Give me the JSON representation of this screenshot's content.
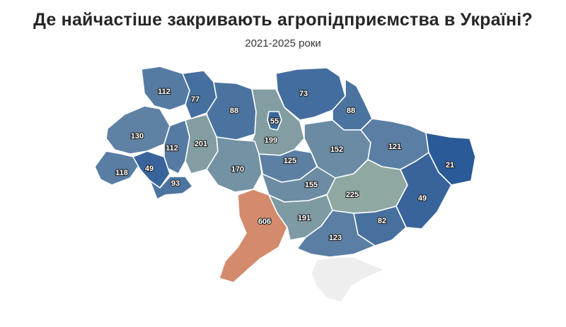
{
  "title": "Де найчастіше закривають агропідприємства в Україні?",
  "subtitle": "2021-2025 роки",
  "colors": {
    "scale_low": "#2a5a97",
    "scale_mid": "#5b7fa4",
    "scale_high": "#8fa8a2",
    "outlier": "#d48a6c",
    "no_data": "#eeeeee"
  },
  "regions": [
    {
      "id": "volyn",
      "value": 112
    },
    {
      "id": "rivne",
      "value": 77
    },
    {
      "id": "zhytomyr",
      "value": 88
    },
    {
      "id": "kyiv-city",
      "value": 55
    },
    {
      "id": "kyiv-oblast",
      "value": 199
    },
    {
      "id": "chernihiv",
      "value": 73
    },
    {
      "id": "sumy",
      "value": 88
    },
    {
      "id": "lviv",
      "value": 130
    },
    {
      "id": "ternopil",
      "value": 112
    },
    {
      "id": "khmelnytskyi",
      "value": 201
    },
    {
      "id": "zakarpattia",
      "value": 118
    },
    {
      "id": "ivano-frankivsk",
      "value": 49
    },
    {
      "id": "chernivtsi",
      "value": 93
    },
    {
      "id": "vinnytsia",
      "value": 170
    },
    {
      "id": "cherkasy",
      "value": 125
    },
    {
      "id": "poltava",
      "value": 152
    },
    {
      "id": "kharkiv",
      "value": 121
    },
    {
      "id": "luhansk",
      "value": 21
    },
    {
      "id": "kirovohrad",
      "value": 155
    },
    {
      "id": "dnipropetrovsk",
      "value": 225
    },
    {
      "id": "donetsk",
      "value": 49
    },
    {
      "id": "odesa",
      "value": 606
    },
    {
      "id": "mykolaiv",
      "value": 191
    },
    {
      "id": "zaporizhzhia",
      "value": 82
    },
    {
      "id": "kherson",
      "value": 123
    },
    {
      "id": "crimea",
      "value": null
    }
  ]
}
